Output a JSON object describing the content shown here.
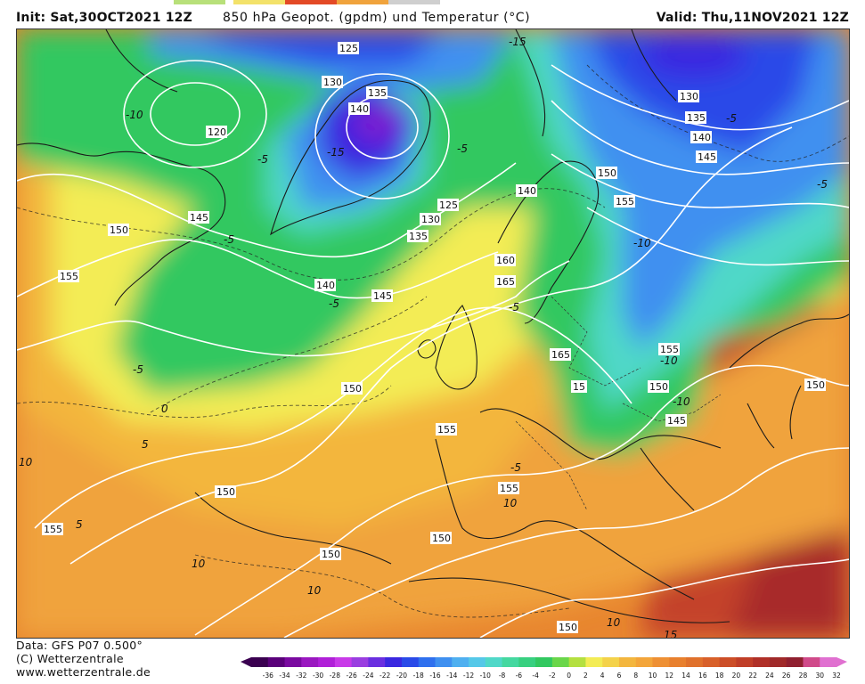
{
  "header": {
    "init": "Init: Sat,30OCT2021 12Z",
    "title": "850 hPa Geopot. (gpdm) und Temperatur (°C)",
    "valid": "Valid: Thu,11NOV2021 12Z"
  },
  "footer": {
    "line1": "Data: GFS P07 0.500°",
    "line2": "(C) Wetterzentrale",
    "line3": "www.wetterzentrale.de"
  },
  "colors": {
    "tabs": [
      "#b8e07a",
      "#f3e26a",
      "#e34a26",
      "#f0a33c",
      "#cfcfcf"
    ],
    "cold_core": "#7a1fd0",
    "deep_blue": "#2a3fe0",
    "blue": "#3f8ff0",
    "cyan": "#52c8e8",
    "green": "#2ecf6c",
    "yellow": "#f3ec55",
    "orange": "#f3a53a",
    "dark_orange": "#e0712c",
    "red": "#c4422a"
  },
  "height_labels": [
    "125",
    "130",
    "135",
    "140",
    "120",
    "145",
    "150",
    "155",
    "125",
    "130",
    "135",
    "140",
    "145",
    "140",
    "150",
    "155",
    "165",
    "160",
    "165",
    "155",
    "150",
    "155",
    "150",
    "155",
    "150",
    "150",
    "155",
    "150",
    "150",
    "15",
    "145",
    "150",
    "130",
    "135",
    "140",
    "145"
  ],
  "temp_labels": [
    "-15",
    "-10",
    "-10",
    "-5",
    "-5",
    "-5",
    "-5",
    "-5",
    "-10",
    "-5",
    "-10",
    "-15",
    "10",
    "10",
    "10",
    "5",
    "0",
    "-5",
    "-5",
    "-5",
    "10",
    "15",
    "10",
    "5"
  ],
  "scale": {
    "labels": [
      "-36",
      "-34",
      "-32",
      "-30",
      "-28",
      "-26",
      "-24",
      "-22",
      "-20",
      "-18",
      "-16",
      "-14",
      "-12",
      "-10",
      "-8",
      "-6",
      "-4",
      "-2",
      "0",
      "2",
      "4",
      "6",
      "8",
      "10",
      "12",
      "14",
      "16",
      "18",
      "20",
      "22",
      "24",
      "26",
      "28",
      "30",
      "32"
    ],
    "colors": [
      "#3a0050",
      "#5a007a",
      "#7a0aa0",
      "#9a18c0",
      "#b020d8",
      "#c83ae8",
      "#9a3ee0",
      "#6a2fe0",
      "#3a28e0",
      "#2a4ae8",
      "#2f70ee",
      "#3f90f0",
      "#4fb0f0",
      "#55c8e8",
      "#50d8c8",
      "#45d8a0",
      "#38d080",
      "#32c860",
      "#6ad64a",
      "#b4e040",
      "#f3ec55",
      "#f4d24a",
      "#f3b63e",
      "#f3a53a",
      "#ee9034",
      "#e8802e",
      "#e0712c",
      "#d8602a",
      "#cc4e28",
      "#c03e28",
      "#b03028",
      "#a02a2a",
      "#902030",
      "#d04a8a",
      "#e070d0"
    ]
  }
}
